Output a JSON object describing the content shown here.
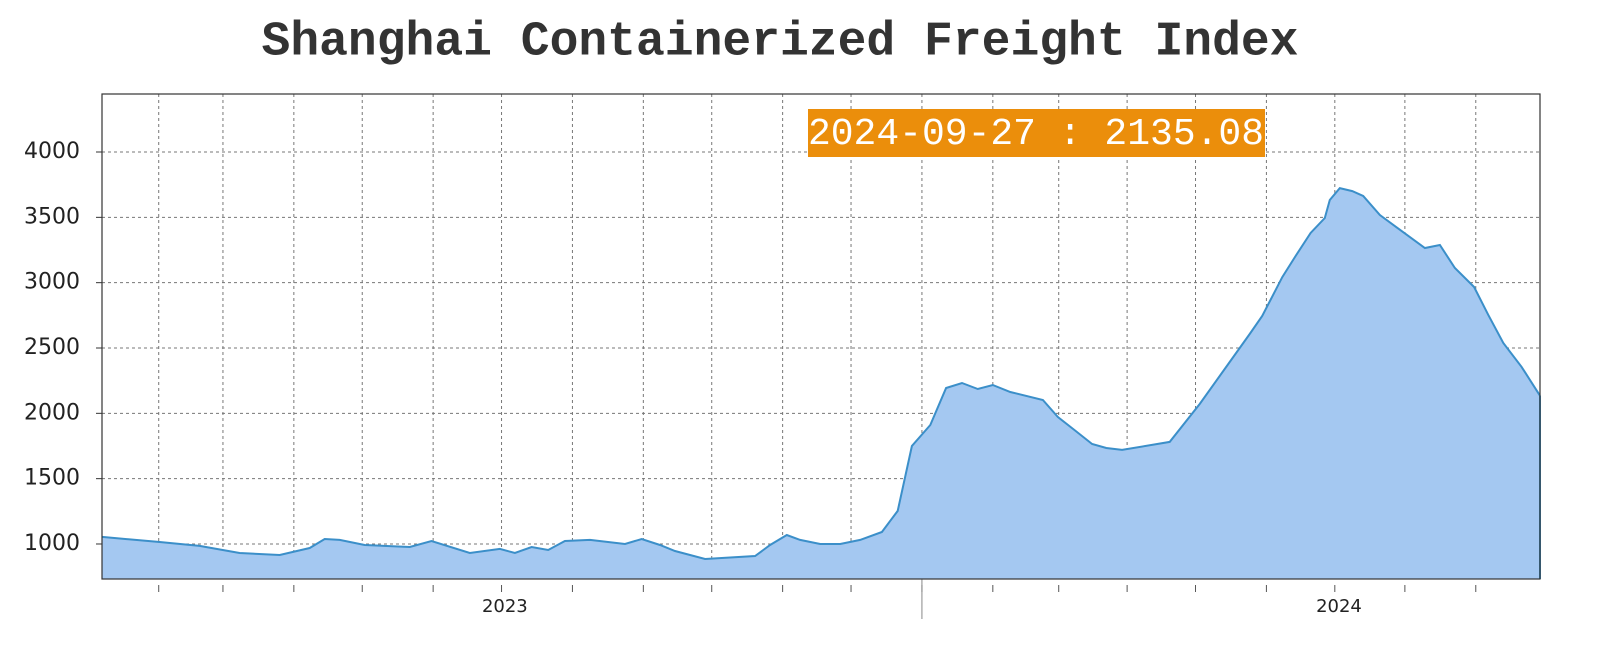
{
  "chart_data": {
    "type": "area",
    "title": "Shanghai Containerized Freight Index",
    "annotation": "2024-09-27 : 2135.08",
    "color": "#a4c8f1",
    "line_color": "#3b8fc9",
    "annotation_color": "#eb8e0b",
    "grid": true,
    "xlim": [
      2023.017,
      2024.741
    ],
    "ylim": [
      732,
      4444
    ],
    "yticks": [
      1000,
      1500,
      2000,
      2500,
      3000,
      3500,
      4000
    ],
    "xticks": [
      2023.085,
      2023.162,
      2023.247,
      2023.329,
      2023.414,
      2023.496,
      2023.581,
      2023.666,
      2023.748,
      2023.833,
      2023.915,
      2024,
      2024.085,
      2024.164,
      2024.246,
      2024.328,
      2024.413,
      2024.495,
      2024.579,
      2024.664
    ],
    "year_ticks": [
      2024
    ],
    "xlabels": [
      {
        "value": 2023.5,
        "label": "2023"
      },
      {
        "value": 2024.5,
        "label": "2024"
      }
    ],
    "x": [
      2023.017,
      2023.086,
      2023.134,
      2023.182,
      2023.23,
      2023.266,
      2023.284,
      2023.302,
      2023.332,
      2023.386,
      2023.412,
      2023.458,
      2023.494,
      2023.512,
      2023.532,
      2023.552,
      2023.572,
      2023.602,
      2023.644,
      2023.664,
      2023.686,
      2023.704,
      2023.74,
      2023.8,
      2023.818,
      2023.838,
      2023.854,
      2023.878,
      2023.902,
      2023.926,
      2023.952,
      2023.971,
      2023.988,
      2024.01,
      2024.029,
      2024.048,
      2024.067,
      2024.085,
      2024.106,
      2024.145,
      2024.163,
      2024.183,
      2024.204,
      2024.221,
      2024.24,
      2024.297,
      2024.333,
      2024.369,
      2024.393,
      2024.408,
      2024.432,
      2024.448,
      2024.466,
      2024.483,
      2024.489,
      2024.501,
      2024.516,
      2024.529,
      2024.549,
      2024.585,
      2024.603,
      2024.621,
      2024.639,
      2024.662,
      2024.679,
      2024.697,
      2024.719,
      2024.741
    ],
    "values": [
      1054,
      1015,
      985,
      931,
      916,
      969,
      1038,
      1031,
      992,
      977,
      1023,
      931,
      962,
      931,
      977,
      954,
      1023,
      1031,
      1000,
      1038,
      992,
      946,
      885,
      908,
      992,
      1069,
      1031,
      1000,
      1000,
      1031,
      1092,
      1253,
      1750,
      1911,
      2194,
      2232,
      2186,
      2217,
      2163,
      2102,
      1972,
      1872,
      1765,
      1735,
      1720,
      1781,
      2071,
      2393,
      2607,
      2745,
      3043,
      3204,
      3380,
      3495,
      3633,
      3724,
      3701,
      3663,
      3518,
      3349,
      3265,
      3288,
      3112,
      2967,
      2753,
      2538,
      2355,
      2135.08
    ]
  }
}
